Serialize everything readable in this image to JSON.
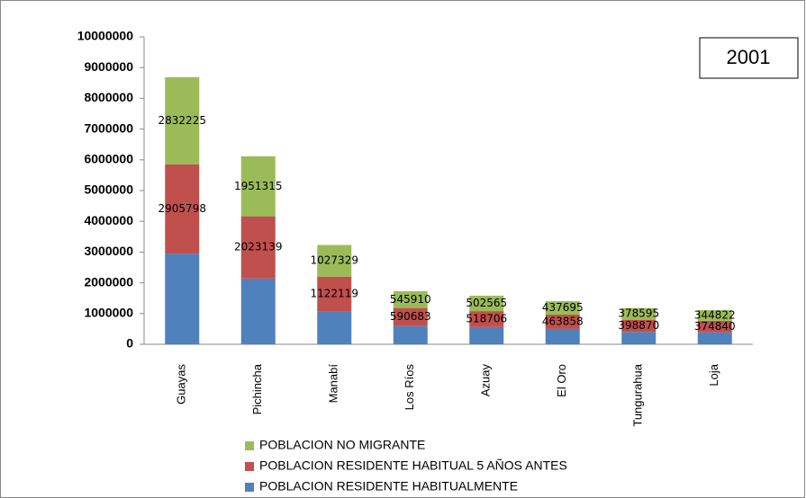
{
  "chart_data": {
    "type": "bar",
    "stacked": true,
    "annotation": "2001",
    "categories": [
      "Guayas",
      "Pichincha",
      "Manabí",
      "Los Ríos",
      "Azuay",
      "El Oro",
      "Tungurahua",
      "Loja"
    ],
    "series": [
      {
        "name": "POBLACION RESIDENTE HABITUALMENTE",
        "color": "#4f81bd",
        "values": [
          2950000,
          2140000,
          1080000,
          590000,
          560000,
          500000,
          400000,
          390000
        ]
      },
      {
        "name": "POBLACION RESIDENTE HABITUAL 5 AÑOS  ANTES",
        "color": "#c0504d",
        "values": [
          2905798,
          2023139,
          1122119,
          590683,
          518706,
          463858,
          398870,
          374840
        ]
      },
      {
        "name": "POBLACION NO MIGRANTE",
        "color": "#9bbb59",
        "values": [
          2832225,
          1951315,
          1027329,
          545910,
          502565,
          437695,
          378595,
          344822
        ]
      }
    ],
    "labeled_series": [
      1,
      2
    ],
    "ylim": [
      0,
      10000000
    ],
    "yticks": [
      0,
      1000000,
      2000000,
      3000000,
      4000000,
      5000000,
      6000000,
      7000000,
      8000000,
      9000000,
      10000000
    ]
  }
}
